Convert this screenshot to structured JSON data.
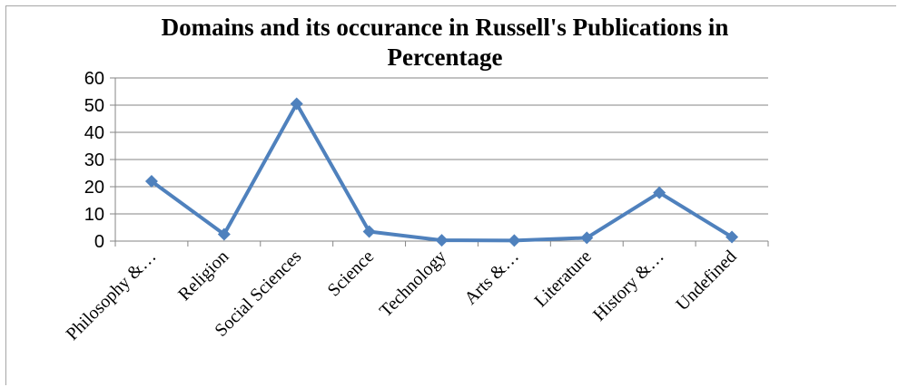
{
  "chart_data": {
    "type": "line",
    "title": "Domains and its occurance in Russell's Publications in Percentage",
    "categories": [
      "Philosophy &…",
      "Religion",
      "Social Sciences",
      "Science",
      "Technology",
      "Arts &…",
      "Literature",
      "History &…",
      "Undefined"
    ],
    "series": [
      {
        "values": [
          22,
          2.5,
          50.5,
          3.5,
          0.3,
          0.2,
          1.2,
          17.8,
          1.5
        ]
      }
    ],
    "ylim": [
      0,
      60
    ],
    "yticks": [
      0,
      10,
      20,
      30,
      40,
      50,
      60
    ],
    "grid": true,
    "legend": "none",
    "xlabel": "",
    "ylabel": "",
    "colors": {
      "line": "#4f81bd",
      "marker": "#4f81bd",
      "grid": "#868686",
      "axis": "#868686"
    }
  }
}
